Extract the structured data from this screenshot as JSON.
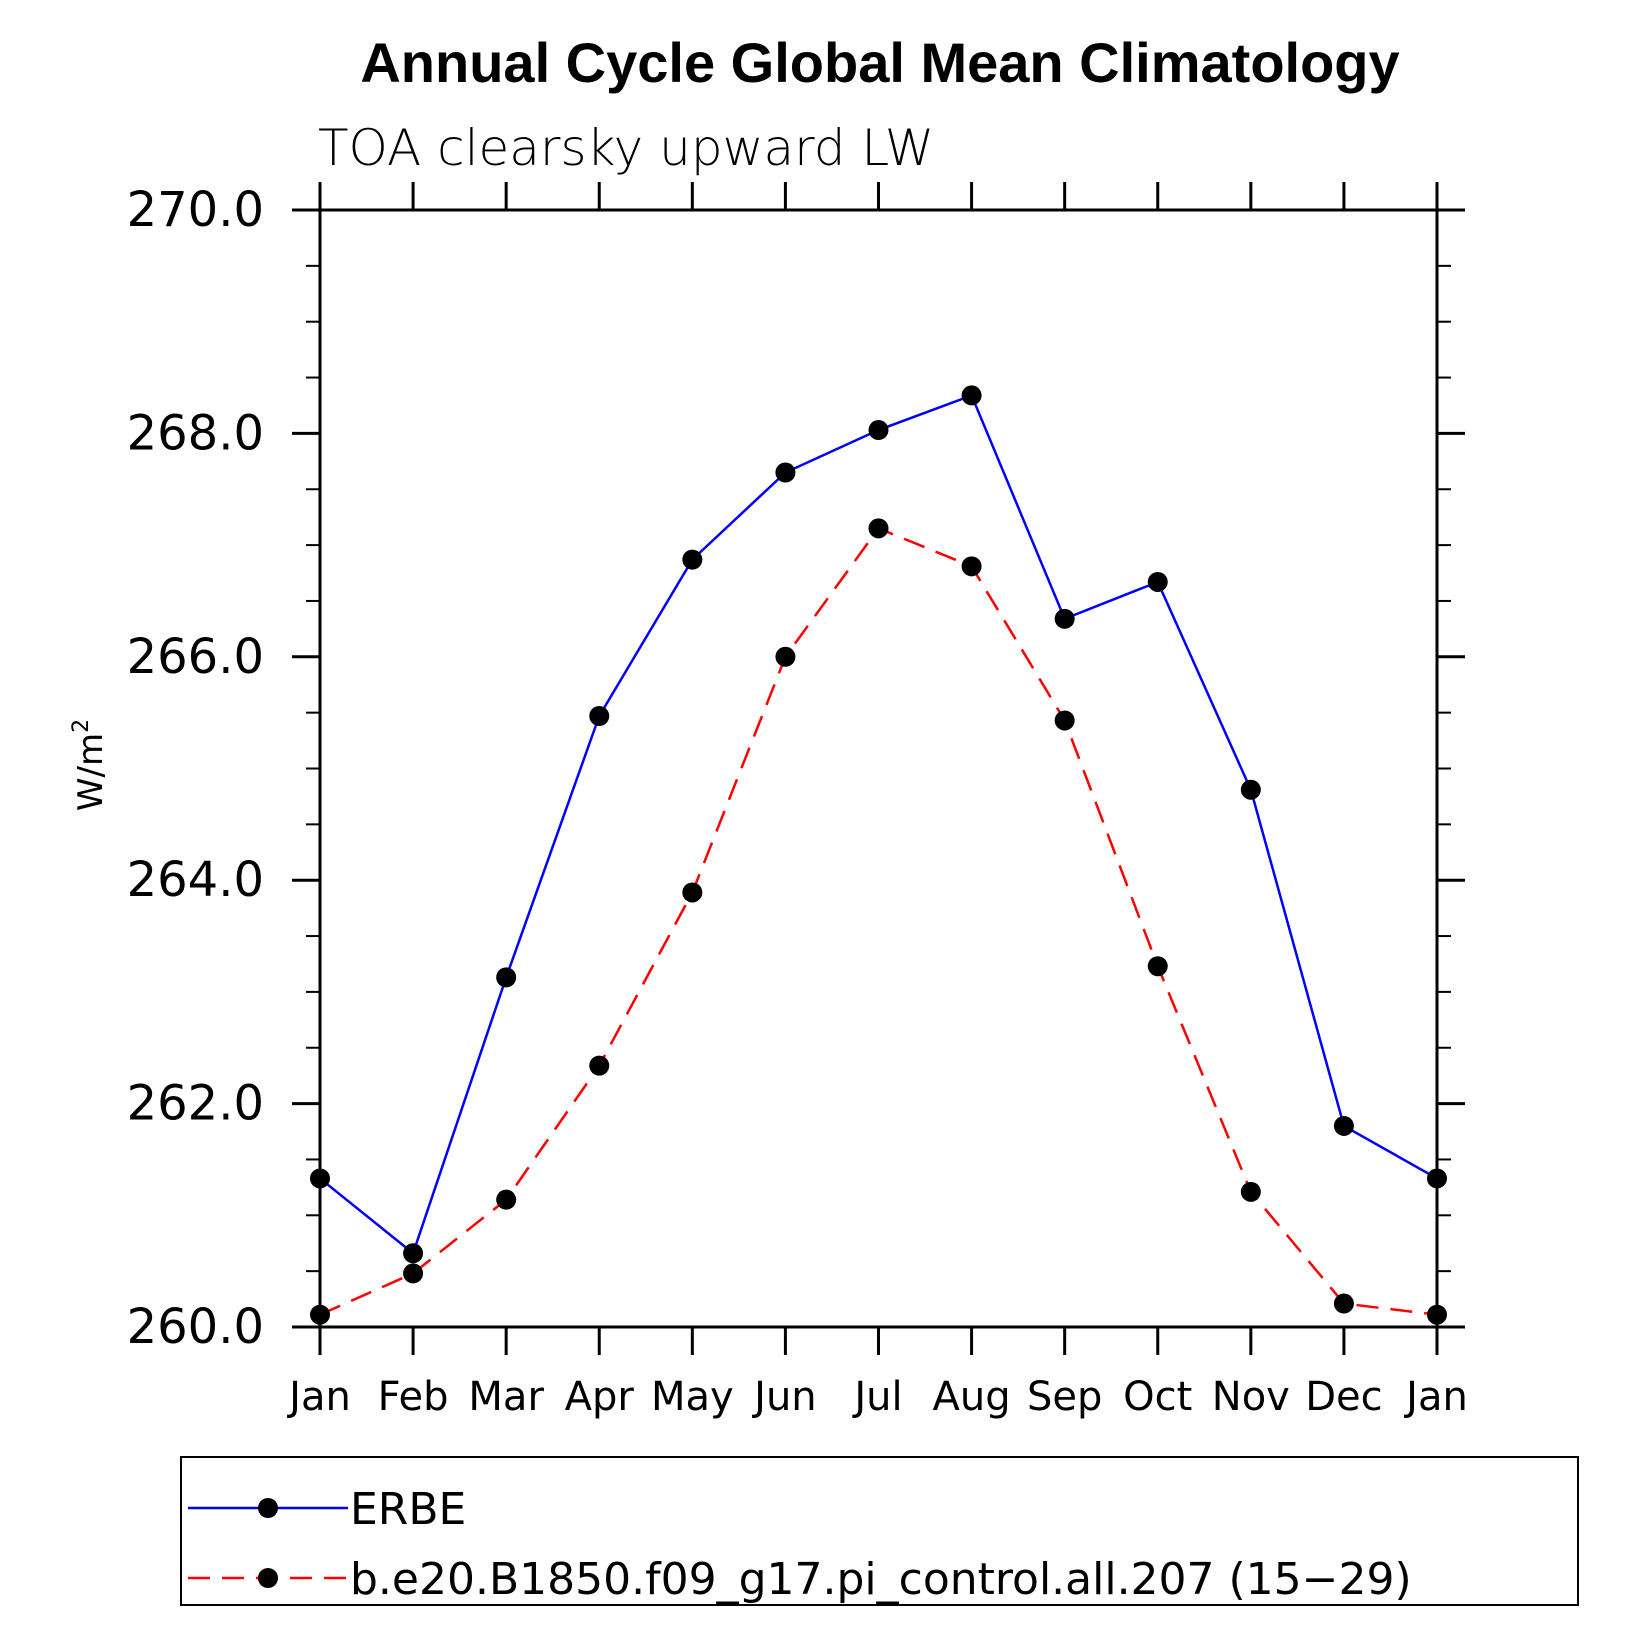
{
  "chart_data": {
    "type": "line",
    "title": "Annual Cycle Global Mean Climatology",
    "subtitle": "TOA clearsky upward LW",
    "ylabel": "W/m",
    "ylabel_superscript": "2",
    "categories": [
      "Jan",
      "Feb",
      "Mar",
      "Apr",
      "May",
      "Jun",
      "Jul",
      "Aug",
      "Sep",
      "Oct",
      "Nov",
      "Dec",
      "Jan"
    ],
    "ylim": [
      260.0,
      270.0
    ],
    "yticks": [
      "260.0",
      "262.0",
      "264.0",
      "266.0",
      "268.0",
      "270.0"
    ],
    "grid": false,
    "legend_position": "bottom",
    "series": [
      {
        "name": "ERBE",
        "color": "#0000ff",
        "linestyle": "solid",
        "marker": "circle",
        "values": [
          261.33,
          260.66,
          263.13,
          265.47,
          266.87,
          267.65,
          268.03,
          268.34,
          266.34,
          266.67,
          264.81,
          261.8,
          261.33
        ]
      },
      {
        "name": "b.e20.B1850.f09_g17.pi_control.all.207 (15−29)",
        "color": "#ff0000",
        "linestyle": "dashed",
        "marker": "circle",
        "values": [
          260.11,
          260.48,
          261.14,
          262.34,
          263.89,
          266.0,
          267.15,
          266.81,
          265.43,
          263.23,
          261.21,
          260.21,
          260.11
        ]
      }
    ]
  }
}
